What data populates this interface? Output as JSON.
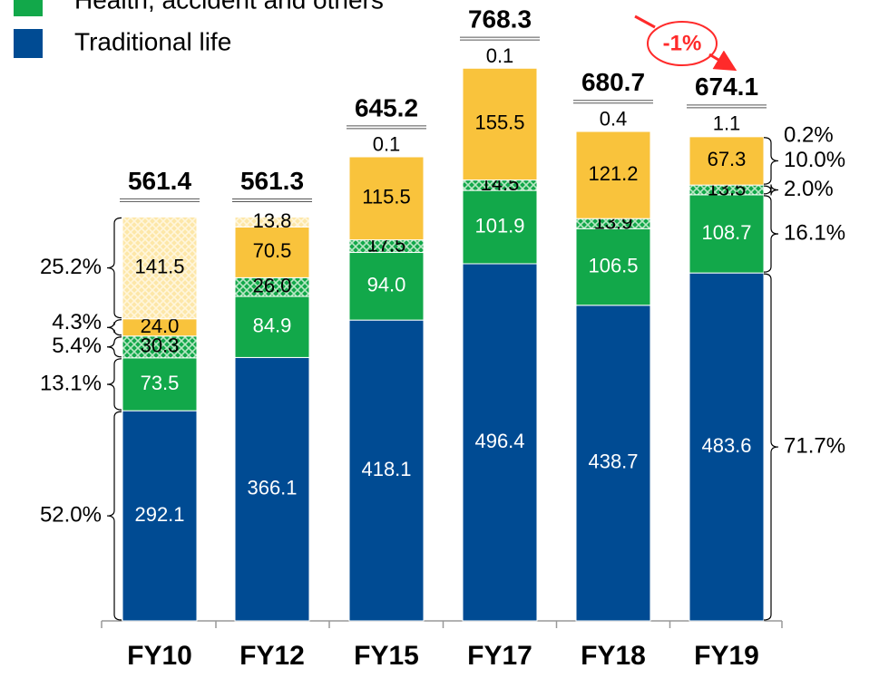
{
  "chart_data": {
    "type": "stacked_bar",
    "categories": [
      "FY10",
      "FY12",
      "FY15",
      "FY17",
      "FY18",
      "FY19"
    ],
    "series": [
      {
        "name": "Traditional life",
        "color": "#004b93",
        "values": [
          292.1,
          366.1,
          418.1,
          496.4,
          438.7,
          483.6
        ]
      },
      {
        "name": "Health, accident and others",
        "color": "#12a84a",
        "values": [
          73.5,
          84.9,
          94.0,
          101.9,
          106.5,
          108.7
        ],
        "value_labels": [
          "73.5",
          "84.9",
          "94.0",
          "101.9",
          "106.5",
          "108.7"
        ]
      },
      {
        "color": "#12a84a",
        "hatched": true,
        "values": [
          30.3,
          26.0,
          17.5,
          14.5,
          13.9,
          13.5
        ],
        "value_labels": [
          "30.3",
          "26.0",
          "17.5",
          "14.5",
          "13.9",
          "13.5"
        ]
      },
      {
        "color": "#f9c33c",
        "values": [
          24.0,
          70.5,
          115.5,
          155.5,
          121.2,
          67.3
        ],
        "value_labels": [
          "24.0",
          "70.5",
          "115.5",
          "155.5",
          "121.2",
          "67.3"
        ]
      },
      {
        "color": "#f9c33c",
        "hatched": true,
        "values": [
          141.5,
          13.8,
          0.1,
          0.1,
          0.4,
          1.1
        ]
      }
    ],
    "totals": [
      561.4,
      561.3,
      645.2,
      768.3,
      680.7,
      674.1
    ],
    "ylim": [
      0,
      800
    ],
    "annotations": {
      "fy10_shares": [
        "52.0%",
        "13.1%",
        "5.4%",
        "4.3%",
        "25.2%"
      ],
      "fy19_shares": [
        "71.7%",
        "16.1%",
        "2.0%",
        "10.0%",
        "0.2%"
      ],
      "change": "-1%"
    }
  }
}
